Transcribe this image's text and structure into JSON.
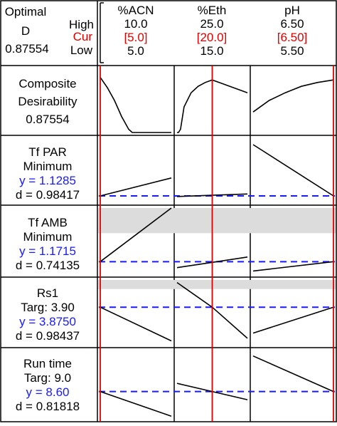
{
  "header": {
    "optimal_label": "Optimal",
    "d_label": "D",
    "d_value": "0.87554",
    "high_label": "High",
    "cur_label": "Cur",
    "low_label": "Low"
  },
  "colors": {
    "current_line": "#e00000",
    "target_line": "#1a1aff",
    "response_value_text": "#1a1aff",
    "shaded_region": "#dcdcdc",
    "curve": "#000000"
  },
  "factors": [
    {
      "name": "%ACN",
      "high": "10.0",
      "cur": "[5.0]",
      "low": "5.0",
      "high_num": 10.0,
      "cur_num": 5.0,
      "low_num": 5.0
    },
    {
      "name": "%Eth",
      "high": "25.0",
      "cur": "[20.0]",
      "low": "15.0",
      "high_num": 25.0,
      "cur_num": 20.0,
      "low_num": 15.0
    },
    {
      "name": "pH",
      "high": "6.50",
      "cur": "[6.50]",
      "low": "5.50",
      "high_num": 6.5,
      "cur_num": 6.5,
      "low_num": 5.5
    }
  ],
  "rows": [
    {
      "name": "Composite",
      "goal": "Desirability",
      "y": "",
      "d": "0.87554"
    },
    {
      "name": "Tf PAR",
      "goal": "Minimum",
      "y": "y = 1.1285",
      "d": "d = 0.98417"
    },
    {
      "name": "Tf AMB",
      "goal": "Minimum",
      "y": "y = 1.1715",
      "d": "d = 0.74135"
    },
    {
      "name": "Rs1",
      "goal": "Targ: 3.90",
      "y": "y = 3.8750",
      "d": "d = 0.98437"
    },
    {
      "name": "Run time",
      "goal": "Targ: 9.0",
      "y": "y = 8.60",
      "d": "d = 0.81818"
    }
  ],
  "chart_data": {
    "type": "line",
    "title": "",
    "note": "Minitab response optimizer: prediction profiles per response vs factor level. Values below are normalized response heights (0 = bottom, 1 = top of each cell).",
    "series": [
      {
        "row": "Composite Desirability",
        "panels": [
          {
            "factor": "%ACN",
            "x": [
              5.0,
              5.5,
              6.0,
              6.5,
              7.0,
              7.25,
              10.0
            ],
            "y": [
              0.86,
              0.7,
              0.5,
              0.25,
              0.05,
              0.0,
              0.0
            ]
          },
          {
            "factor": "%Eth",
            "x": [
              15.0,
              15.2,
              15.5,
              16.0,
              17.0,
              18.0,
              19.0,
              20.0,
              21.5,
              23.0,
              25.0
            ],
            "y": [
              0.0,
              0.0,
              0.05,
              0.4,
              0.62,
              0.72,
              0.78,
              0.82,
              0.76,
              0.7,
              0.62
            ]
          },
          {
            "factor": "pH",
            "x": [
              5.5,
              5.7,
              5.9,
              6.1,
              6.3,
              6.5
            ],
            "y": [
              0.32,
              0.5,
              0.62,
              0.72,
              0.78,
              0.82
            ]
          }
        ],
        "shaded_band": null
      },
      {
        "row": "Tf PAR",
        "panels": [
          {
            "factor": "%ACN",
            "x": [
              5.0,
              10.0
            ],
            "y": [
              0.1,
              0.38
            ]
          },
          {
            "factor": "%Eth",
            "x": [
              15.0,
              20.0,
              25.0
            ],
            "y": [
              0.09,
              0.11,
              0.13
            ]
          },
          {
            "factor": "pH",
            "x": [
              5.5,
              6.5
            ],
            "y": [
              0.9,
              0.1
            ]
          }
        ],
        "target_line": 0.1,
        "shaded_band": null
      },
      {
        "row": "Tf AMB",
        "panels": [
          {
            "factor": "%ACN",
            "x": [
              5.0,
              10.0
            ],
            "y": [
              0.19,
              1.0
            ]
          },
          {
            "factor": "%Eth",
            "x": [
              15.0,
              20.0,
              25.0
            ],
            "y": [
              0.1,
              0.18,
              0.26
            ]
          },
          {
            "factor": "pH",
            "x": [
              5.5,
              6.5
            ],
            "y": [
              0.05,
              0.19
            ]
          }
        ],
        "target_line": 0.19,
        "shaded_band": [
          0.62,
          1.0
        ]
      },
      {
        "row": "Rs1",
        "panels": [
          {
            "factor": "%ACN",
            "x": [
              5.0,
              10.0
            ],
            "y": [
              0.58,
              0.06
            ]
          },
          {
            "factor": "%Eth",
            "x": [
              15.0,
              20.0,
              25.0
            ],
            "y": [
              0.96,
              0.58,
              0.1
            ]
          },
          {
            "factor": "pH",
            "x": [
              5.5,
              6.5
            ],
            "y": [
              0.18,
              0.58
            ]
          }
        ],
        "target_line": 0.58,
        "shaded_band": [
          0.86,
          1.0
        ]
      },
      {
        "row": "Run time",
        "panels": [
          {
            "factor": "%ACN",
            "x": [
              5.0,
              10.0
            ],
            "y": [
              0.4,
              0.04
            ]
          },
          {
            "factor": "%Eth",
            "x": [
              15.0,
              20.0,
              25.0
            ],
            "y": [
              0.52,
              0.4,
              0.28
            ]
          },
          {
            "factor": "pH",
            "x": [
              5.5,
              6.5
            ],
            "y": [
              0.92,
              0.4
            ]
          }
        ],
        "target_line": 0.4,
        "shaded_band": null
      }
    ]
  }
}
